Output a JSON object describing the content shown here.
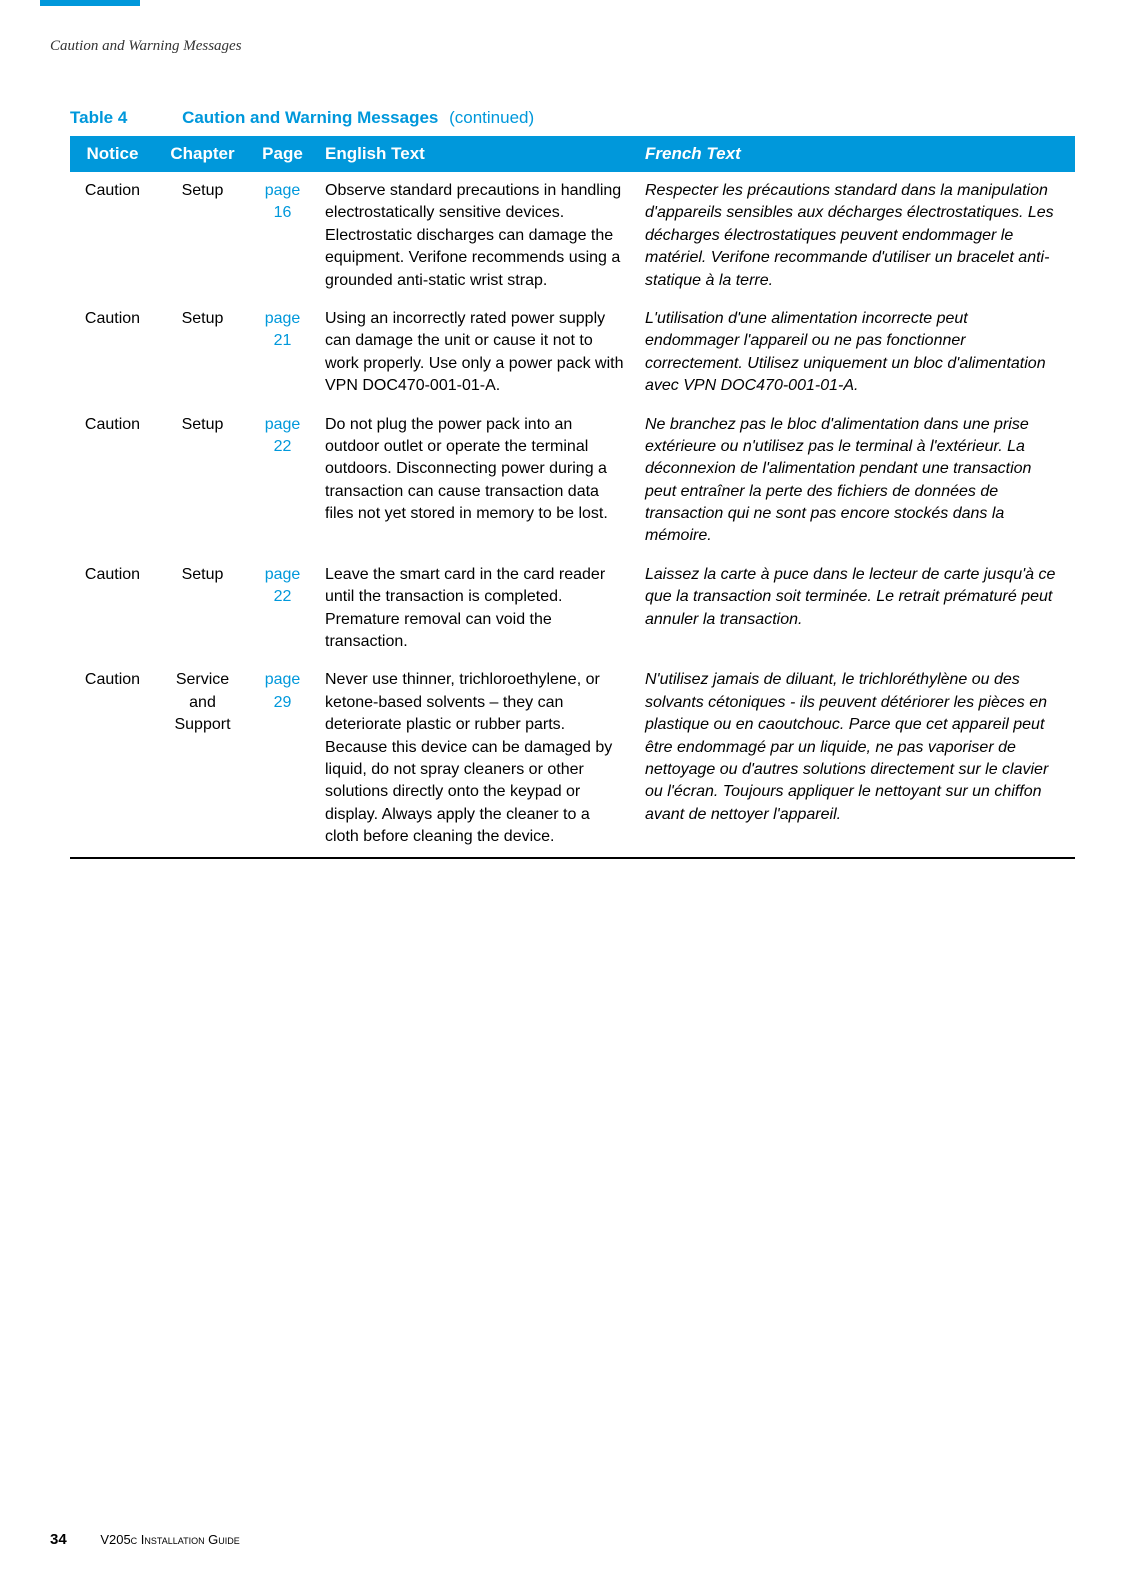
{
  "section_header": "Caution and Warning Messages",
  "table": {
    "label": "Table 4",
    "title": "Caution and Warning Messages",
    "continued": " (continued)",
    "header": {
      "notice": "Notice",
      "chapter": "Chapter",
      "page": "Page",
      "english": "English Text",
      "french": "French Text"
    },
    "rows": [
      {
        "notice": "Caution",
        "chapter": "Setup",
        "page_label": "page 16",
        "en": "Observe standard precautions in handling electrostatically sensitive devices. Electrostatic discharges can damage the equipment. Verifone recommends using a grounded anti-static wrist strap.",
        "fr": "Respecter les précautions standard dans la manipulation d'appareils sensibles aux décharges électrostatiques. Les décharges électrostatiques peuvent endommager le matériel. Verifone recommande d'utiliser un bracelet anti-statique à la terre."
      },
      {
        "notice": "Caution",
        "chapter": "Setup",
        "page_label": "page 21",
        "en": "Using an incorrectly rated power supply can damage the unit or cause it not to work properly. Use only a power pack with VPN DOC470-001-01-A.",
        "fr": "L'utilisation d'une alimentation incorrecte peut endommager l'appareil ou ne pas fonctionner correctement. Utilisez uniquement un bloc d'alimentation avec VPN DOC470-001-01-A."
      },
      {
        "notice": "Caution",
        "chapter": "Setup",
        "page_label": "page 22",
        "en": "Do not plug the power pack into an outdoor outlet or operate the terminal outdoors. Disconnecting power during a transaction can cause transaction data files not yet stored in memory to be lost.",
        "fr": "Ne branchez pas le bloc d'alimentation dans une prise extérieure ou n'utilisez pas le terminal à l'extérieur. La déconnexion de l'alimentation pendant une transaction peut entraîner la perte des fichiers de données de transaction qui ne sont pas encore stockés dans la mémoire."
      },
      {
        "notice": "Caution",
        "chapter": "Setup",
        "page_label": "page 22",
        "en": "Leave the smart card in the card reader until the transaction is completed. Premature removal can void the transaction.",
        "fr": "Laissez la carte à puce dans le lecteur de carte jusqu'à ce que la transaction soit terminée. Le retrait prématuré peut annuler la transaction."
      },
      {
        "notice": "Caution",
        "chapter": "Service and Support",
        "page_label": "page 29",
        "en": "Never use thinner, trichloroethylene, or ketone-based solvents – they can deteriorate plastic or rubber parts. Because this device can be damaged by liquid, do not spray cleaners or other solutions directly onto the keypad or display. Always apply the cleaner to a cloth before cleaning the device.",
        "fr": "N'utilisez jamais de diluant, le trichloréthylène ou des solvants cétoniques - ils peuvent détériorer les pièces en plastique ou en caoutchouc. Parce que cet appareil peut être endommagé par un liquide, ne pas vaporiser de nettoyage ou d'autres solutions directement sur le clavier ou l'écran. Toujours appliquer le nettoyant sur un chiffon avant de nettoyer l'appareil."
      }
    ]
  },
  "footer": {
    "page_number": "34",
    "guide": "V205c Installation Guide"
  },
  "colors": {
    "brand_blue": "#0098db",
    "text": "#000000",
    "bg": "#ffffff"
  }
}
